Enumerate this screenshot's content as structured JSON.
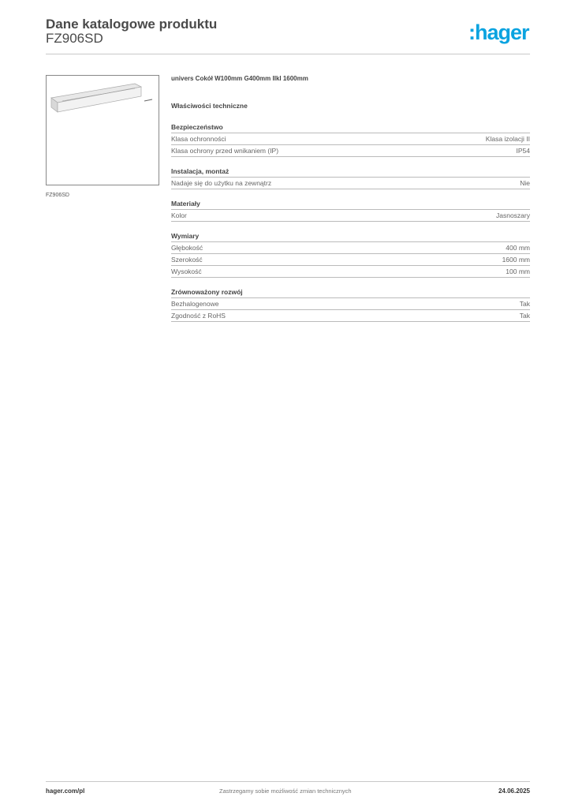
{
  "header": {
    "title": "Dane katalogowe produktu",
    "product_code": "FZ906SD",
    "logo_text": ":hager",
    "logo_color": "#0aa3e0"
  },
  "image": {
    "caption": "FZ906SD"
  },
  "product_name": "univers Cokół W100mm G400mm IIkl 1600mm",
  "properties_title": "Właściwości techniczne",
  "sections": [
    {
      "title": "Bezpieczeństwo",
      "rows": [
        {
          "label": "Klasa ochronności",
          "value": "Klasa izolacji II"
        },
        {
          "label": "Klasa ochrony przed wnikaniem (IP)",
          "value": "IP54"
        }
      ]
    },
    {
      "title": "Instalacja, montaż",
      "rows": [
        {
          "label": "Nadaje się do użytku na zewnątrz",
          "value": "Nie"
        }
      ]
    },
    {
      "title": "Materiały",
      "rows": [
        {
          "label": "Kolor",
          "value": "Jasnoszary"
        }
      ]
    },
    {
      "title": "Wymiary",
      "rows": [
        {
          "label": "Głębokość",
          "value": "400 mm"
        },
        {
          "label": "Szerokość",
          "value": "1600 mm"
        },
        {
          "label": "Wysokość",
          "value": "100 mm"
        }
      ]
    },
    {
      "title": "Zrównoważony rozwój",
      "rows": [
        {
          "label": "Bezhalogenowe",
          "value": "Tak"
        },
        {
          "label": "Zgodność z RoHS",
          "value": "Tak"
        }
      ]
    }
  ],
  "footer": {
    "website": "hager.com/pl",
    "notice": "Zastrzegamy sobie możliwość zmian technicznych",
    "date": "24.06.2025"
  }
}
